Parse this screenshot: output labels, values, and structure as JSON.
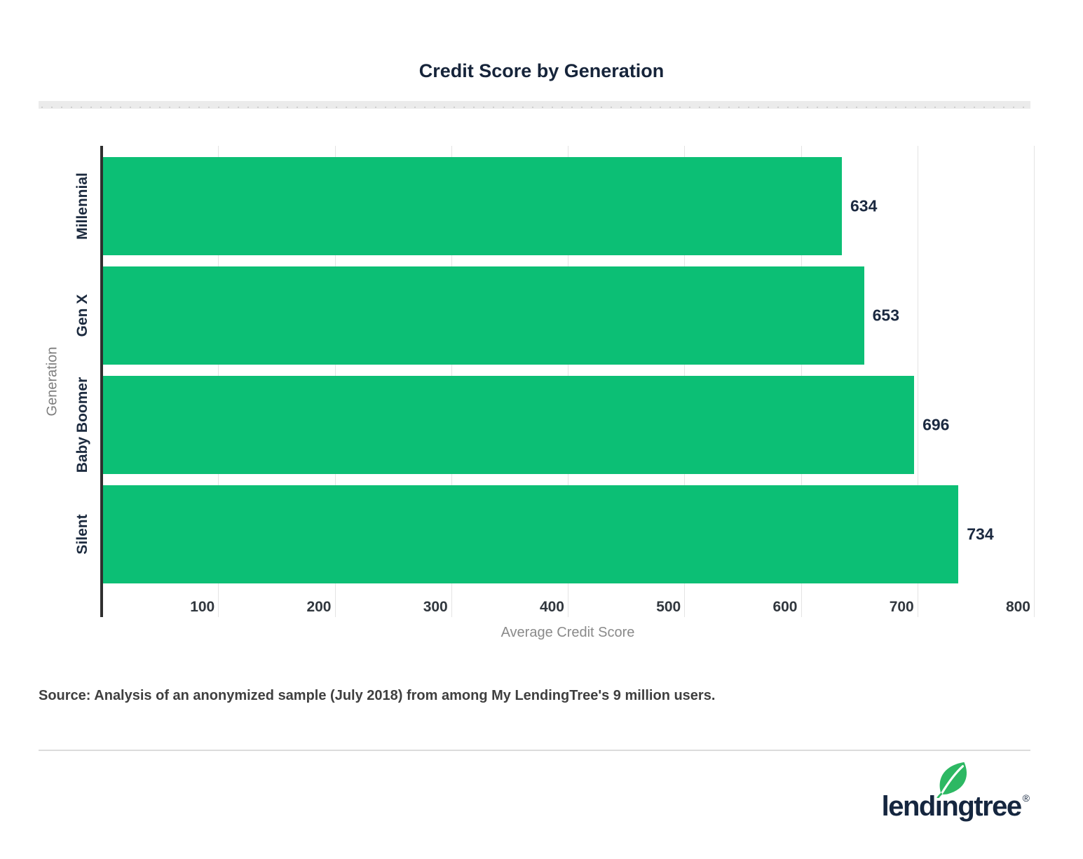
{
  "chart_data": {
    "type": "bar",
    "orientation": "horizontal",
    "title": "Credit Score by Generation",
    "categories": [
      "Millennial",
      "Gen X",
      "Baby Boomer",
      "Silent"
    ],
    "values": [
      634,
      653,
      696,
      734
    ],
    "xlabel": "Average Credit Score",
    "ylabel": "Generation",
    "xlim": [
      0,
      800
    ],
    "x_ticks": [
      100,
      200,
      300,
      400,
      500,
      600,
      700,
      800
    ],
    "grid": "vertical-gridlines-on",
    "legend": "none",
    "bar_color": "#0cbf75",
    "value_label_color": "#1b2940",
    "tick_label_color": "#31373e",
    "axis_line_color": "#2f2f2f",
    "gridline_color": "#e4e4e4",
    "axis_title_color": "#8a8a8a"
  },
  "source": {
    "text": "Source: Analysis of an anonymized sample (July 2018) from among My LendingTree's 9 million users."
  },
  "footer": {
    "logo_text": "lendingtree",
    "registered_mark": "®",
    "logo_color": "#15263f",
    "leaf_color": "#2db863"
  }
}
